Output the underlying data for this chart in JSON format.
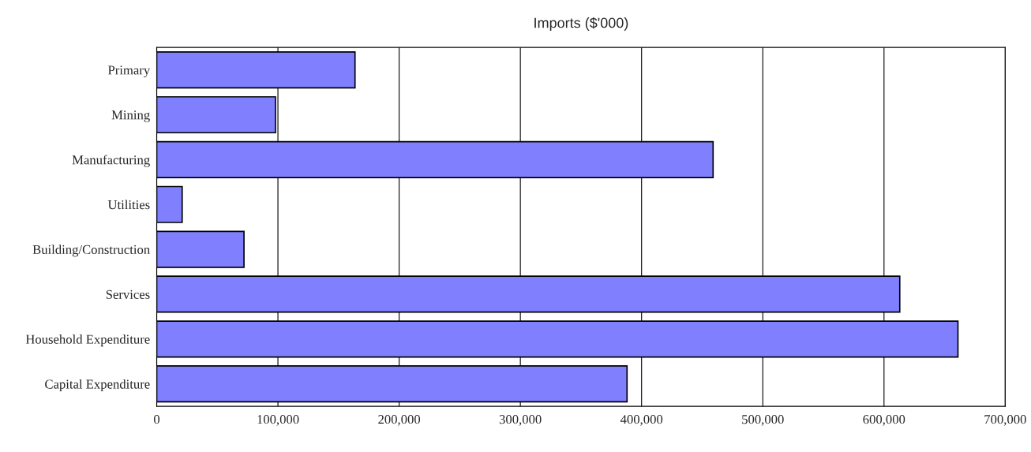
{
  "chart_data": {
    "type": "bar",
    "title": "Imports ($'000)",
    "orientation": "horizontal",
    "categories": [
      "Primary",
      "Mining",
      "Manufacturing",
      "Utilities",
      "Building/Construction",
      "Services",
      "Household Expenditure",
      "Capital Expenditure"
    ],
    "values": [
      163600,
      98000,
      459000,
      21000,
      72000,
      613000,
      661000,
      388000
    ],
    "color": "#8080ff",
    "xlim": [
      0,
      700000
    ],
    "xticks": [
      0,
      {
        "value": 100000,
        "label": "100,000"
      },
      {
        "value": 200000,
        "label": "200,000"
      },
      {
        "value": 300000,
        "label": "300,000"
      },
      {
        "value": 400000,
        "label": "400,000"
      },
      {
        "value": 500000,
        "label": "500,000"
      },
      {
        "value": 600000,
        "label": "600,000"
      },
      {
        "value": 700000,
        "label": "700,000"
      }
    ],
    "grid": "x",
    "legend": false
  }
}
